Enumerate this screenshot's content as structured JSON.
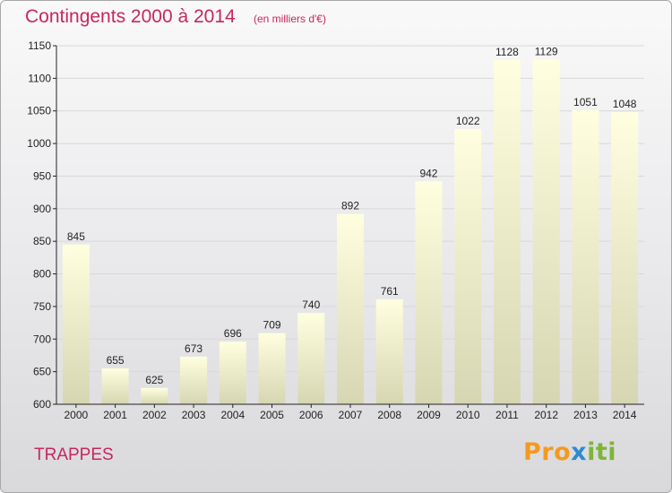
{
  "header": {
    "title": "Contingents 2000 à 2014",
    "subtitle": "(en milliers d'€)"
  },
  "footer": {
    "commune": "TRAPPES",
    "logo": {
      "part1": "Pro",
      "part2": "x",
      "part3": "iti"
    }
  },
  "colors": {
    "accent": "#c8275a",
    "bar_top": "#ffffe0",
    "bar_bottom": "#d6d6b2",
    "axis": "#222222",
    "grid": "#d8d8d8"
  },
  "chart_data": {
    "type": "bar",
    "title": "Contingents 2000 à 2014",
    "subtitle": "(en milliers d'€)",
    "xlabel": "",
    "ylabel": "",
    "categories": [
      "2000",
      "2001",
      "2002",
      "2003",
      "2004",
      "2005",
      "2006",
      "2007",
      "2008",
      "2009",
      "2010",
      "2011",
      "2012",
      "2013",
      "2014"
    ],
    "values": [
      845,
      655,
      625,
      673,
      696,
      709,
      740,
      892,
      761,
      942,
      1022,
      1128,
      1129,
      1051,
      1048
    ],
    "data_labels": [
      "845",
      "655",
      "625",
      "673",
      "696",
      "709",
      "740",
      "892",
      "761",
      "942",
      "1022",
      "1128",
      "1129",
      "1051",
      "1048"
    ],
    "ylim": [
      600,
      1150
    ],
    "yticks": [
      600,
      650,
      700,
      750,
      800,
      850,
      900,
      950,
      1000,
      1050,
      1100,
      1150
    ],
    "grid": true,
    "legend": "none"
  }
}
